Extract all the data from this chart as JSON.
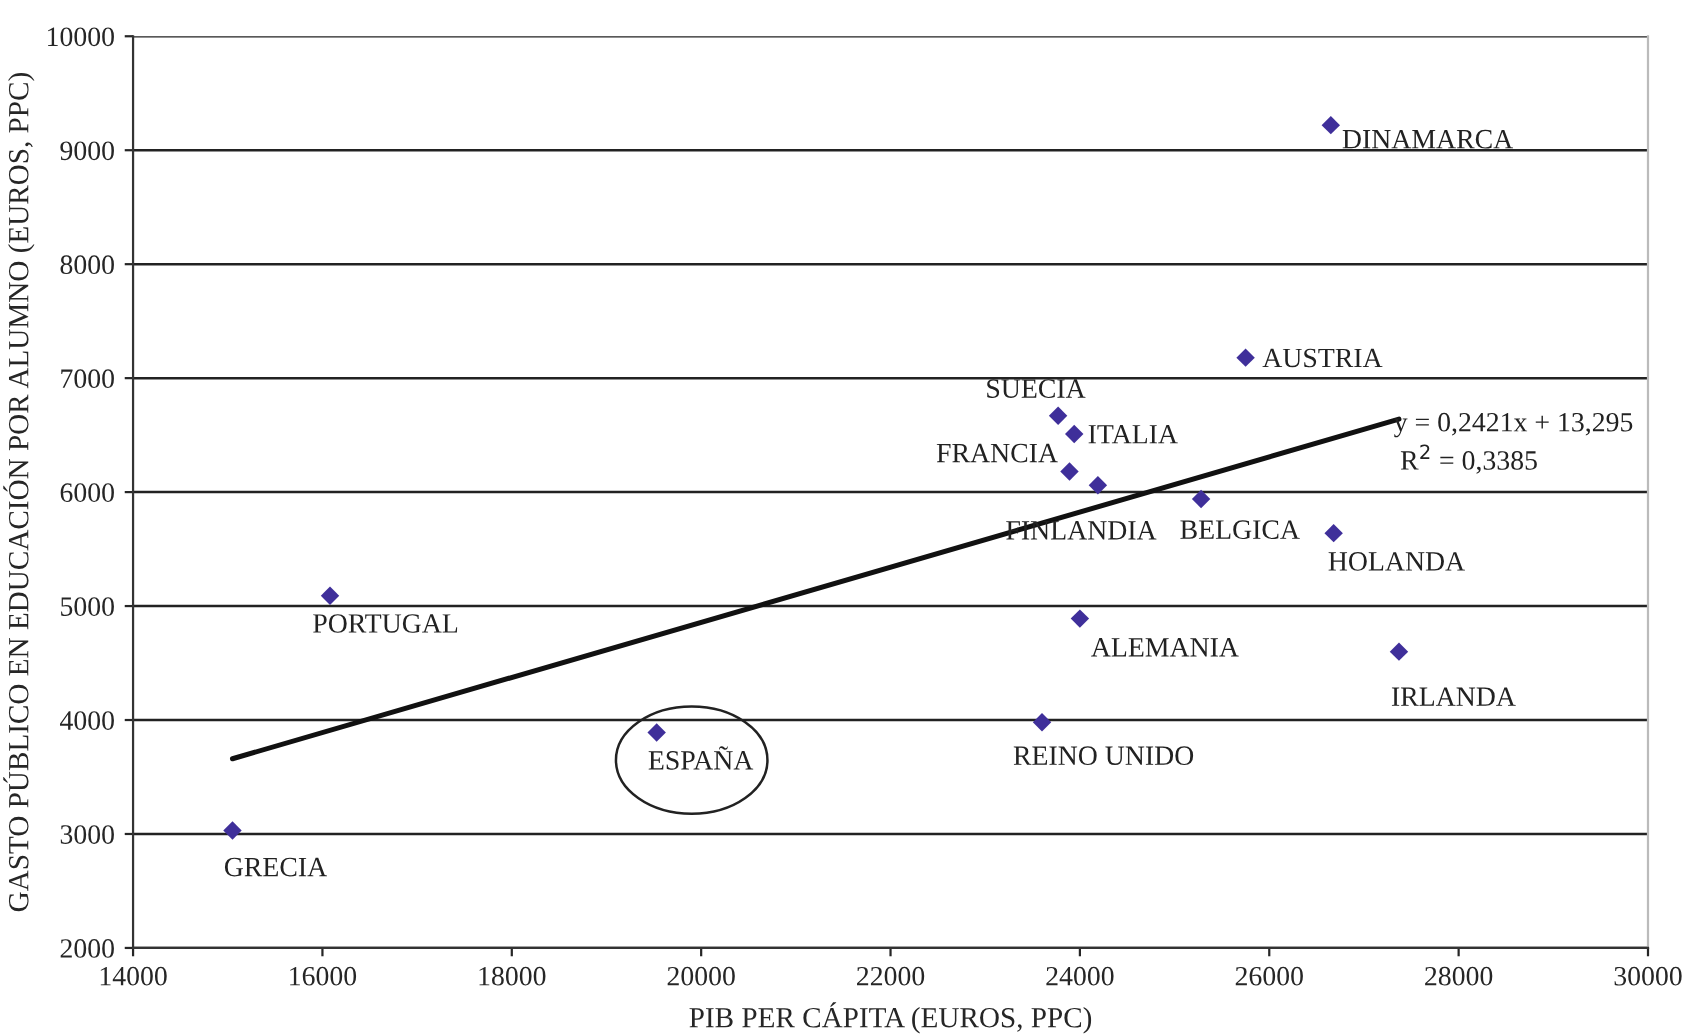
{
  "chart_data": {
    "type": "scatter",
    "xlabel": "PIB PER CÁPITA (EUROS, PPC)",
    "ylabel": "GASTO PÚBLICO EN EDUCACIÓN POR ALUMNO (EUROS, PPC)",
    "xlim": [
      14000,
      30000
    ],
    "xticks": [
      14000,
      16000,
      18000,
      20000,
      22000,
      24000,
      26000,
      28000,
      30000
    ],
    "ylim": [
      2000,
      10000
    ],
    "yticks": [
      2000,
      3000,
      4000,
      5000,
      6000,
      7000,
      8000,
      9000,
      10000
    ],
    "grid": "y",
    "legend": false,
    "marker": "diamond",
    "series": [
      {
        "color": "#3f2f9a",
        "x": [
          26650,
          25750,
          23770,
          23940,
          23890,
          24190,
          25280,
          26680,
          24000,
          27370,
          23600,
          19530,
          16080,
          15050
        ],
        "values": [
          9220,
          7180,
          6670,
          6510,
          6180,
          6060,
          5940,
          5640,
          4890,
          4600,
          3980,
          3890,
          5090,
          3030
        ]
      },
      {
        "type": "line",
        "color": "#111111",
        "marker": "none",
        "line_style": "solid",
        "x": [
          15050,
          27370
        ],
        "values": [
          3660,
          6640
        ]
      }
    ],
    "annotations": [
      {
        "text": "DINAMARCA",
        "x": 26650,
        "y": 9222
      },
      {
        "text": "AUSTRIA",
        "x": 25750,
        "y": 7180
      },
      {
        "text": "SUECIA",
        "x": 23766,
        "y": 6668
      },
      {
        "text": "ITALIA",
        "x": 23935,
        "y": 6511
      },
      {
        "text": "FRANCIA",
        "x": 23886,
        "y": 6175
      },
      {
        "text": "FINLANDIA",
        "x": 24188,
        "y": 6058
      },
      {
        "text": "BELGICA",
        "x": 25278,
        "y": 5942
      },
      {
        "text": "HOLANDA",
        "x": 26677,
        "y": 5639
      },
      {
        "text": "ALEMANIA",
        "x": 23998,
        "y": 4885
      },
      {
        "text": "IRLANDA",
        "x": 27373,
        "y": 4598
      },
      {
        "text": "REINO UNIDO",
        "x": 23605,
        "y": 3983
      },
      {
        "text": "ESPAÑA",
        "x": 19525,
        "y": 3893
      },
      {
        "text": "PORTUGAL",
        "x": 16080,
        "y": 5094
      },
      {
        "text": "GRECIA",
        "x": 15046,
        "y": 3030
      },
      {
        "text": "y = 0,2421x + 13,295",
        "x": 27373,
        "y": 6640
      },
      {
        "text": "R$^{2}$ = 0,3385",
        "x": 27373,
        "y": 6640
      }
    ]
  }
}
